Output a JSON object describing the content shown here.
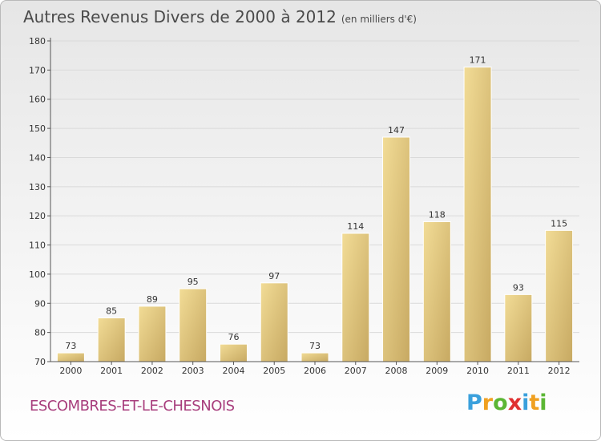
{
  "header": {
    "title": "Autres Revenus Divers de 2000 à 2012",
    "unit": "(en milliers d'€)"
  },
  "footer": {
    "commune": "ESCOMBRES-ET-LE-CHESNOIS",
    "logo_letters": [
      "P",
      "r",
      "o",
      "x",
      "i",
      "t",
      "i"
    ],
    "logo_colors": [
      "#3aa0dc",
      "#f0a020",
      "#5bb634",
      "#e03030",
      "#3aa0dc",
      "#f0a020",
      "#5bb634"
    ]
  },
  "colors": {
    "bar_light": "#f2dc96",
    "bar_dark": "#c7a962",
    "grid": "#dadada",
    "axis": "#555555"
  },
  "chart_data": {
    "type": "bar",
    "title": "Autres Revenus Divers de 2000 à 2012",
    "subtitle": "(en milliers d'€)",
    "categories": [
      "2000",
      "2001",
      "2002",
      "2003",
      "2004",
      "2005",
      "2006",
      "2007",
      "2008",
      "2009",
      "2010",
      "2011",
      "2012"
    ],
    "values": [
      73,
      85,
      89,
      95,
      76,
      97,
      73,
      114,
      147,
      118,
      171,
      93,
      115
    ],
    "ylim": [
      70,
      180
    ],
    "yticks": [
      70,
      80,
      90,
      100,
      110,
      120,
      130,
      140,
      150,
      160,
      170,
      180
    ],
    "grid": true
  }
}
